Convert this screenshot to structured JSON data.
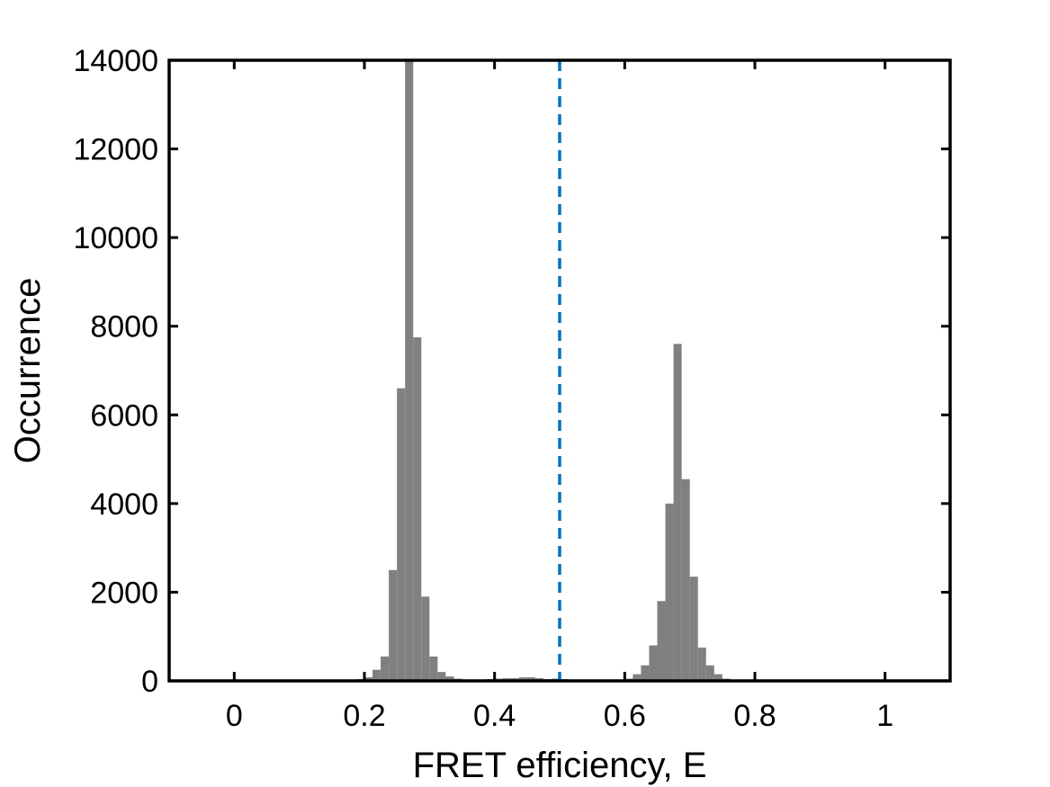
{
  "chart_data": {
    "type": "bar",
    "subtype": "histogram",
    "title": "",
    "xlabel": "FRET efficiency, E",
    "ylabel": "Occurrence",
    "xlim": [
      -0.1,
      1.1
    ],
    "ylim": [
      0,
      14000
    ],
    "xticks": [
      0,
      0.2,
      0.4,
      0.6,
      0.8,
      1
    ],
    "xtick_labels": [
      "0",
      "0.2",
      "0.4",
      "0.6",
      "0.8",
      "1"
    ],
    "yticks": [
      0,
      2000,
      4000,
      6000,
      8000,
      10000,
      12000,
      14000
    ],
    "ytick_labels": [
      "0",
      "2000",
      "4000",
      "6000",
      "8000",
      "10000",
      "12000",
      "14000"
    ],
    "bin_width": 0.0125,
    "bin_start": 0.0,
    "values": [
      10,
      10,
      10,
      10,
      10,
      10,
      10,
      10,
      10,
      20,
      20,
      20,
      20,
      20,
      20,
      40,
      80,
      250,
      550,
      2500,
      6600,
      14000,
      7750,
      1900,
      550,
      200,
      100,
      50,
      30,
      30,
      30,
      40,
      50,
      60,
      60,
      80,
      80,
      60,
      40,
      50,
      40,
      30,
      30,
      30,
      30,
      30,
      30,
      30,
      50,
      150,
      350,
      800,
      1800,
      4000,
      7600,
      4550,
      2350,
      750,
      350,
      150,
      50,
      20,
      20,
      20,
      20,
      20,
      20,
      20,
      20,
      20,
      20,
      20,
      20,
      20,
      20,
      20,
      20,
      20,
      20,
      20
    ],
    "bar_color": "#808080",
    "reference_line": {
      "x": 0.5,
      "style": "dashed",
      "color": "#0072BD"
    },
    "grid": false,
    "box": true
  }
}
